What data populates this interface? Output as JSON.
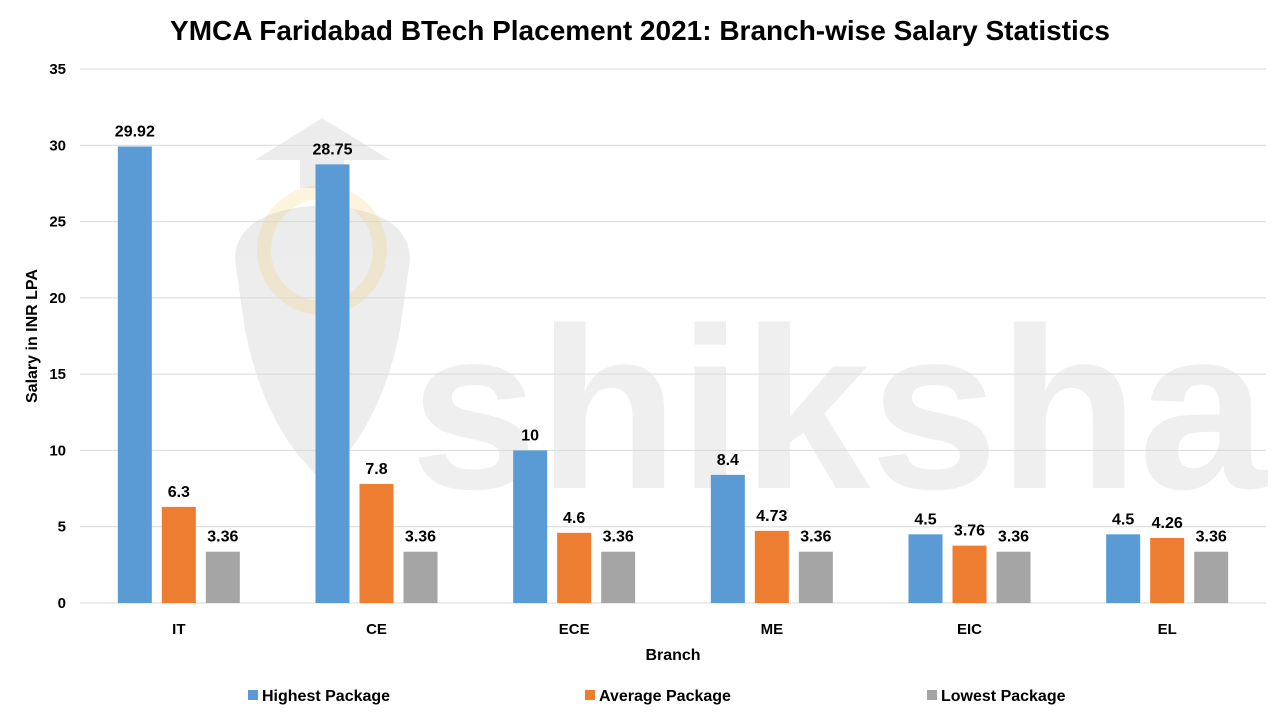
{
  "watermark": {
    "text": "shiksha",
    "icon": "shiksha-graduate-logo-icon"
  },
  "chart_data": {
    "type": "bar",
    "title": "YMCA Faridabad BTech Placement 2021: Branch-wise Salary Statistics",
    "xlabel": "Branch",
    "ylabel": "Salary in INR LPA",
    "ylim": [
      0,
      35
    ],
    "yticks": [
      0,
      5,
      10,
      15,
      20,
      25,
      30,
      35
    ],
    "grid": true,
    "legend_position": "bottom",
    "categories": [
      "IT",
      "CE",
      "ECE",
      "ME",
      "EIC",
      "EL"
    ],
    "series": [
      {
        "name": "Highest Package",
        "color": "#5b9bd5",
        "values": [
          29.92,
          28.75,
          10,
          8.4,
          4.5,
          4.5
        ]
      },
      {
        "name": "Average Package",
        "color": "#ed7d31",
        "values": [
          6.3,
          7.8,
          4.6,
          4.73,
          3.76,
          4.26
        ]
      },
      {
        "name": "Lowest Package",
        "color": "#a5a5a5",
        "values": [
          3.36,
          3.36,
          3.36,
          3.36,
          3.36,
          3.36
        ]
      }
    ]
  }
}
